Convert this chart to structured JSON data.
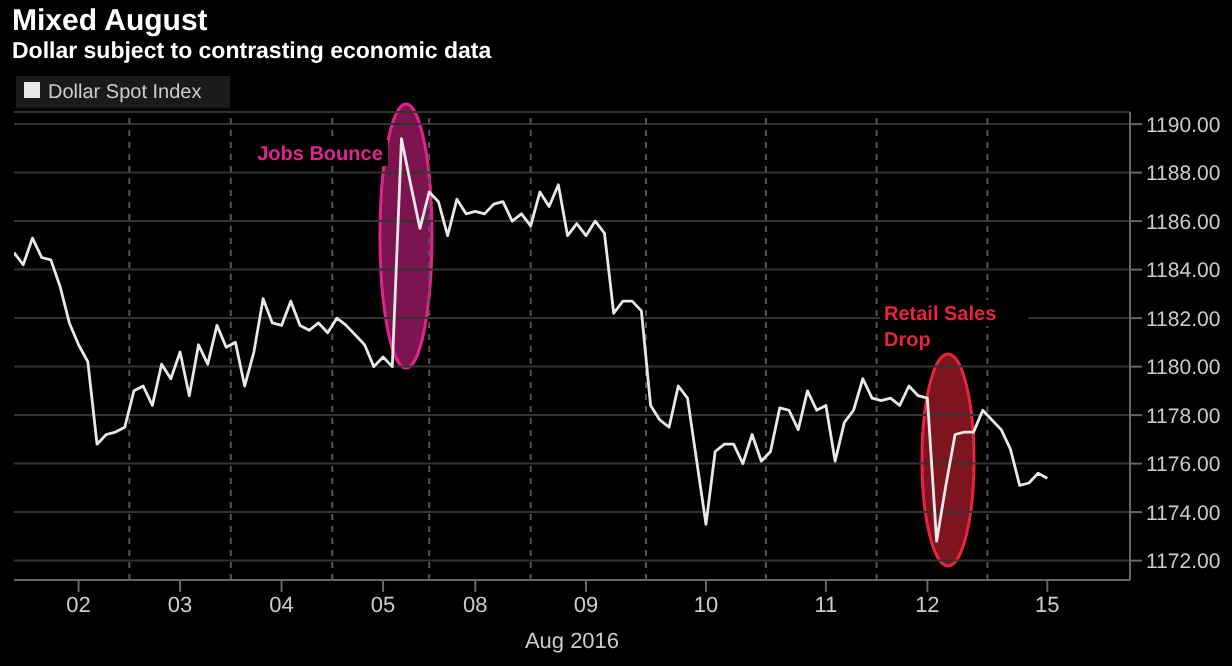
{
  "chart_data": {
    "type": "line",
    "title": "Mixed August",
    "subtitle": "Dollar subject to contrasting economic data",
    "xlabel": "Aug 2016",
    "categories": [
      null,
      null,
      null,
      null,
      null,
      null,
      null,
      "02",
      null,
      null,
      null,
      null,
      null,
      null,
      null,
      null,
      null,
      null,
      "03",
      null,
      null,
      null,
      null,
      null,
      null,
      null,
      null,
      null,
      null,
      "04",
      null,
      null,
      null,
      null,
      null,
      null,
      null,
      null,
      null,
      null,
      "05",
      null,
      null,
      null,
      null,
      null,
      null,
      null,
      null,
      null,
      "08",
      null,
      null,
      null,
      null,
      null,
      null,
      null,
      null,
      null,
      null,
      null,
      "09",
      null,
      null,
      null,
      null,
      null,
      null,
      null,
      null,
      null,
      null,
      null,
      null,
      "10",
      null,
      null,
      null,
      null,
      null,
      null,
      null,
      null,
      null,
      null,
      null,
      null,
      "11",
      null,
      null,
      null,
      null,
      null,
      null,
      null,
      null,
      null,
      null,
      "12",
      null,
      null,
      null,
      null,
      null,
      null,
      null,
      null,
      null,
      null,
      null,
      null,
      "15"
    ],
    "ylim": [
      1171.2,
      1190.5
    ],
    "yticks": [
      {
        "value": 1172,
        "label": "1172.00"
      },
      {
        "value": 1174,
        "label": "1174.00"
      },
      {
        "value": 1176,
        "label": "1176.00"
      },
      {
        "value": 1178,
        "label": "1178.00"
      },
      {
        "value": 1180,
        "label": "1180.00"
      },
      {
        "value": 1182,
        "label": "1182.00"
      },
      {
        "value": 1184,
        "label": "1184.00"
      },
      {
        "value": 1186,
        "label": "1186.00"
      },
      {
        "value": 1188,
        "label": "1188.00"
      },
      {
        "value": 1190,
        "label": "1190.00"
      }
    ],
    "grid": true,
    "legend": "top left",
    "annotations": [
      "Jobs Bounce",
      "Retail Sales Drop"
    ],
    "series": [
      {
        "name": "Dollar Spot Index",
        "color": "#e8e8e8",
        "values": [
          1184.7,
          1184.2,
          1185.3,
          1184.5,
          1184.4,
          1183.3,
          1181.8,
          1180.9,
          1180.2,
          1176.8,
          1177.2,
          1177.3,
          1177.5,
          1179,
          1179.2,
          1178.4,
          1180.1,
          1179.5,
          1180.6,
          1178.8,
          1180.9,
          1180.1,
          1181.7,
          1180.8,
          1181,
          1179.2,
          1180.6,
          1182.8,
          1181.8,
          1181.7,
          1182.7,
          1181.7,
          1181.5,
          1181.8,
          1181.4,
          1182,
          1181.7,
          1181.3,
          1180.9,
          1180,
          1180.4,
          1180,
          1189.4,
          1187.5,
          1185.7,
          1187.2,
          1186.8,
          1185.4,
          1186.9,
          1186.3,
          1186.4,
          1186.3,
          1186.7,
          1186.8,
          1186,
          1186.3,
          1185.8,
          1187.2,
          1186.6,
          1187.5,
          1185.4,
          1185.9,
          1185.4,
          1186,
          1185.5,
          1182.2,
          1182.7,
          1182.7,
          1182.3,
          1178.4,
          1177.8,
          1177.5,
          1179.2,
          1178.7,
          1176.1,
          1173.5,
          1176.5,
          1176.8,
          1176.8,
          1176,
          1177.2,
          1176.1,
          1176.5,
          1178.3,
          1178.2,
          1177.4,
          1179,
          1178.2,
          1178.4,
          1176.1,
          1177.7,
          1178.2,
          1179.5,
          1178.7,
          1178.6,
          1178.7,
          1178.4,
          1179.2,
          1178.8,
          1178.7,
          1172.8,
          1175.1,
          1177.2,
          1177.3,
          1177.3,
          1178.2,
          1177.8,
          1177.4,
          1176.6,
          1175.1,
          1175.2,
          1175.6,
          1175.4
        ]
      }
    ]
  }
}
